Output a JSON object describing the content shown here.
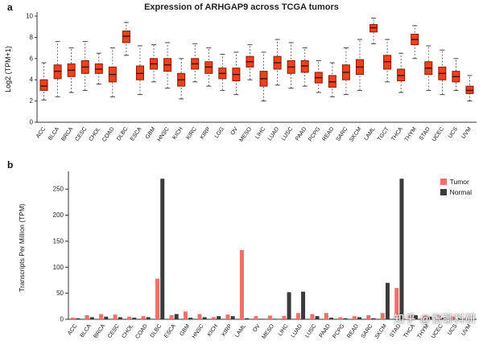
{
  "watermark": "知乎 @张聊科研",
  "panels": {
    "a": {
      "label": "a"
    },
    "b": {
      "label": "b"
    }
  },
  "chart_data": [
    {
      "type": "boxplot",
      "title": "Expression of ARHGAP9 across TCGA tumors",
      "ylabel": "Log2 (TPM+1)",
      "ylim": [
        0,
        10
      ],
      "yticks": [
        0,
        2,
        4,
        6,
        8,
        10
      ],
      "box_color": "#e8431f",
      "box_stroke": "#8b1a00",
      "median_color": "#4a0d04",
      "whisker_color": "#444444",
      "categories": [
        "ACC",
        "BLCA",
        "BRCA",
        "CESC",
        "CHOL",
        "COAD",
        "DLBC",
        "ESCA",
        "GBM",
        "HNSC",
        "KICH",
        "KIRC",
        "KIRP",
        "LGG",
        "OV",
        "MESO",
        "LIHC",
        "LUAD",
        "LUSC",
        "PAAD",
        "PCPG",
        "READ",
        "SARC",
        "SKCM",
        "LAML",
        "TGCT",
        "THCA",
        "THYM",
        "STAD",
        "UCEC",
        "UCS",
        "UVM"
      ],
      "boxes": [
        {
          "lo": 2.1,
          "q1": 3.0,
          "med": 3.4,
          "q3": 4.0,
          "hi": 5.6
        },
        {
          "lo": 2.4,
          "q1": 4.1,
          "med": 4.8,
          "q3": 5.4,
          "hi": 7.6
        },
        {
          "lo": 2.8,
          "q1": 4.3,
          "med": 4.9,
          "q3": 5.5,
          "hi": 7.0
        },
        {
          "lo": 3.0,
          "q1": 4.6,
          "med": 5.2,
          "q3": 5.8,
          "hi": 7.6
        },
        {
          "lo": 3.6,
          "q1": 4.6,
          "med": 5.0,
          "q3": 5.5,
          "hi": 6.5
        },
        {
          "lo": 2.4,
          "q1": 3.8,
          "med": 4.5,
          "q3": 5.2,
          "hi": 7.0
        },
        {
          "lo": 6.3,
          "q1": 7.5,
          "med": 8.1,
          "q3": 8.6,
          "hi": 9.4
        },
        {
          "lo": 2.6,
          "q1": 4.0,
          "med": 4.6,
          "q3": 5.3,
          "hi": 7.2
        },
        {
          "lo": 3.8,
          "q1": 5.0,
          "med": 5.5,
          "q3": 6.0,
          "hi": 7.3
        },
        {
          "lo": 3.2,
          "q1": 4.8,
          "med": 5.4,
          "q3": 6.0,
          "hi": 7.5
        },
        {
          "lo": 2.2,
          "q1": 3.4,
          "med": 4.0,
          "q3": 4.6,
          "hi": 6.0
        },
        {
          "lo": 3.8,
          "q1": 5.0,
          "med": 5.5,
          "q3": 6.0,
          "hi": 7.4
        },
        {
          "lo": 3.4,
          "q1": 4.6,
          "med": 5.2,
          "q3": 5.7,
          "hi": 7.0
        },
        {
          "lo": 3.0,
          "q1": 4.1,
          "med": 4.6,
          "q3": 5.1,
          "hi": 6.4
        },
        {
          "lo": 2.6,
          "q1": 3.9,
          "med": 4.5,
          "q3": 5.1,
          "hi": 6.6
        },
        {
          "lo": 4.0,
          "q1": 5.2,
          "med": 5.7,
          "q3": 6.2,
          "hi": 7.3
        },
        {
          "lo": 2.0,
          "q1": 3.4,
          "med": 4.1,
          "q3": 4.8,
          "hi": 6.6
        },
        {
          "lo": 3.5,
          "q1": 5.0,
          "med": 5.6,
          "q3": 6.2,
          "hi": 7.8
        },
        {
          "lo": 3.2,
          "q1": 4.6,
          "med": 5.2,
          "q3": 5.8,
          "hi": 7.5
        },
        {
          "lo": 3.4,
          "q1": 4.7,
          "med": 5.3,
          "q3": 5.8,
          "hi": 7.0
        },
        {
          "lo": 2.8,
          "q1": 3.7,
          "med": 4.2,
          "q3": 4.7,
          "hi": 5.8
        },
        {
          "lo": 2.4,
          "q1": 3.3,
          "med": 3.8,
          "q3": 4.4,
          "hi": 5.6
        },
        {
          "lo": 2.6,
          "q1": 4.0,
          "med": 4.7,
          "q3": 5.4,
          "hi": 7.0
        },
        {
          "lo": 3.0,
          "q1": 4.5,
          "med": 5.2,
          "q3": 5.9,
          "hi": 7.8
        },
        {
          "lo": 7.4,
          "q1": 8.5,
          "med": 8.9,
          "q3": 9.2,
          "hi": 9.8
        },
        {
          "lo": 3.8,
          "q1": 5.0,
          "med": 5.7,
          "q3": 6.3,
          "hi": 7.8
        },
        {
          "lo": 2.8,
          "q1": 3.9,
          "med": 4.4,
          "q3": 5.0,
          "hi": 6.5
        },
        {
          "lo": 6.0,
          "q1": 7.3,
          "med": 7.8,
          "q3": 8.3,
          "hi": 9.1
        },
        {
          "lo": 3.0,
          "q1": 4.5,
          "med": 5.1,
          "q3": 5.7,
          "hi": 7.2
        },
        {
          "lo": 2.6,
          "q1": 4.0,
          "med": 4.6,
          "q3": 5.2,
          "hi": 6.8
        },
        {
          "lo": 3.0,
          "q1": 3.8,
          "med": 4.3,
          "q3": 4.8,
          "hi": 6.0
        },
        {
          "lo": 2.0,
          "q1": 2.7,
          "med": 3.0,
          "q3": 3.4,
          "hi": 4.4
        }
      ]
    },
    {
      "type": "bar",
      "ylabel": "Transcripts Per Million (TPM)",
      "ylim": [
        0,
        275
      ],
      "yticks": [
        0,
        50,
        100,
        150,
        200,
        250
      ],
      "legend_position": "top-right",
      "categories": [
        "ACC",
        "BLCA",
        "BRCA",
        "CESC",
        "CHOL",
        "COAD",
        "DLBC",
        "ESCA",
        "GBM",
        "HNSC",
        "KICH",
        "KIRP",
        "LAML",
        "OV",
        "MESO",
        "LIHC",
        "LUAD",
        "LUSC",
        "PAAD",
        "PCPG",
        "READ",
        "SARC",
        "SKCM",
        "STAD",
        "THCA",
        "THYM",
        "UCEC",
        "UCS",
        "UVM"
      ],
      "series": [
        {
          "name": "Tumor",
          "color": "#f0706a",
          "values": [
            3,
            8,
            10,
            9,
            5,
            6,
            78,
            8,
            15,
            10,
            4,
            9,
            133,
            6,
            7,
            6,
            12,
            10,
            12,
            4,
            6,
            8,
            12,
            60,
            10,
            8,
            8,
            5,
            3
          ]
        },
        {
          "name": "Normal",
          "color": "#3b3b3b",
          "values": [
            2,
            4,
            5,
            4,
            3,
            4,
            270,
            10,
            3,
            4,
            6,
            6,
            2,
            1,
            1,
            52,
            53,
            6,
            3,
            2,
            4,
            2,
            70,
            270,
            8,
            5,
            3,
            2,
            1
          ]
        }
      ]
    }
  ]
}
